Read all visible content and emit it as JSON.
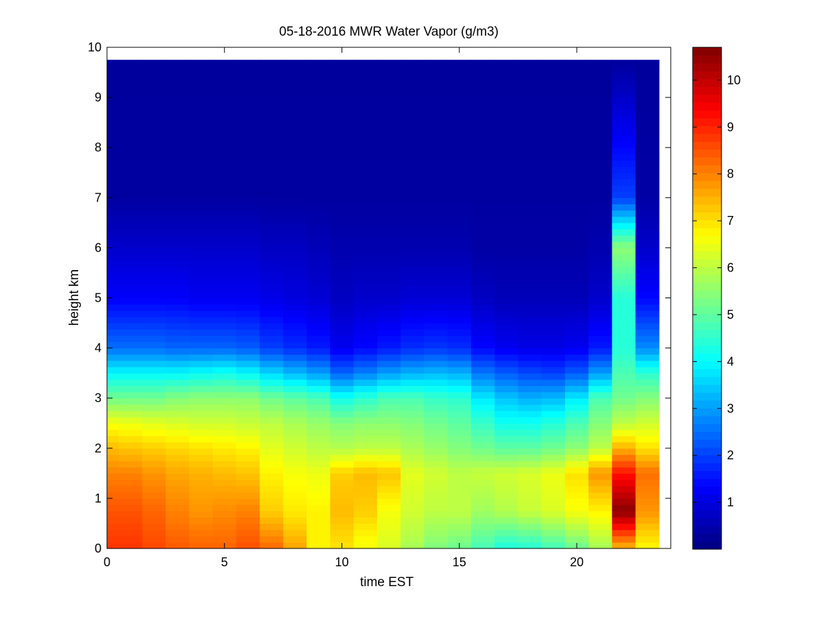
{
  "chart_data": {
    "type": "heatmap",
    "title": "05-18-2016 MWR Water Vapor (g/m3)",
    "xlabel": "time EST",
    "ylabel": "height km",
    "xlim": [
      0,
      24
    ],
    "ylim": [
      0,
      10
    ],
    "x_ticks": [
      "0",
      "5",
      "10",
      "15",
      "20"
    ],
    "y_ticks": [
      "0",
      "1",
      "2",
      "3",
      "4",
      "5",
      "6",
      "7",
      "8",
      "9",
      "10"
    ],
    "colorbar": {
      "colormap": "jet",
      "range": [
        0,
        10.7
      ],
      "ticks": [
        "1",
        "2",
        "3",
        "4",
        "5",
        "6",
        "7",
        "8",
        "9",
        "10"
      ]
    },
    "time_hours": [
      0,
      1,
      2,
      3,
      4,
      5,
      6,
      7,
      8,
      9,
      10,
      11,
      12,
      13,
      14,
      15,
      16,
      17,
      18,
      19,
      20,
      21,
      22,
      23
    ],
    "data_extent": {
      "x_max": 23.5,
      "y_max": 9.75
    },
    "profiles": {
      "height_km": [
        0.05,
        0.75,
        1.5,
        2.0,
        2.5,
        3.0,
        3.5,
        4.0,
        5.0,
        6.0,
        7.0,
        9.75
      ],
      "values": [
        [
          8.8,
          8.5,
          8.0,
          7.4,
          6.6,
          5.2,
          4.0,
          2.5,
          1.3,
          0.8,
          0.35,
          0.3
        ],
        [
          8.8,
          8.5,
          8.0,
          7.3,
          6.5,
          5.2,
          4.0,
          2.5,
          1.3,
          0.8,
          0.35,
          0.3
        ],
        [
          8.6,
          8.3,
          7.8,
          7.2,
          6.4,
          5.2,
          4.0,
          2.5,
          1.3,
          0.8,
          0.35,
          0.3
        ],
        [
          8.4,
          8.0,
          7.6,
          7.1,
          6.3,
          5.4,
          4.0,
          2.4,
          1.3,
          0.8,
          0.35,
          0.3
        ],
        [
          8.3,
          7.8,
          7.5,
          7.0,
          6.2,
          5.5,
          4.1,
          2.4,
          1.2,
          0.8,
          0.35,
          0.3
        ],
        [
          8.3,
          7.9,
          7.4,
          6.9,
          6.2,
          5.5,
          4.2,
          2.4,
          1.2,
          0.8,
          0.35,
          0.3
        ],
        [
          8.5,
          8.0,
          7.3,
          6.8,
          6.1,
          5.5,
          4.0,
          2.3,
          1.2,
          0.8,
          0.35,
          0.3
        ],
        [
          8.2,
          7.2,
          6.8,
          6.4,
          6.0,
          5.2,
          3.6,
          2.0,
          1.1,
          0.7,
          0.35,
          0.3
        ],
        [
          7.6,
          6.9,
          6.6,
          6.2,
          5.8,
          5.0,
          3.3,
          1.8,
          1.0,
          0.7,
          0.35,
          0.3
        ],
        [
          6.8,
          6.8,
          6.5,
          6.0,
          5.6,
          4.8,
          3.0,
          1.6,
          0.9,
          0.6,
          0.35,
          0.3
        ],
        [
          7.0,
          7.4,
          7.2,
          5.9,
          5.4,
          4.2,
          2.4,
          1.2,
          0.7,
          0.5,
          0.35,
          0.3
        ],
        [
          6.6,
          7.2,
          7.4,
          6.0,
          5.5,
          4.5,
          2.7,
          1.4,
          0.8,
          0.5,
          0.35,
          0.3
        ],
        [
          6.3,
          6.6,
          7.3,
          6.0,
          5.5,
          4.8,
          3.0,
          1.6,
          0.8,
          0.5,
          0.35,
          0.3
        ],
        [
          5.8,
          6.2,
          6.4,
          5.8,
          5.4,
          4.8,
          3.2,
          1.8,
          0.9,
          0.5,
          0.35,
          0.3
        ],
        [
          5.4,
          6.0,
          6.2,
          5.6,
          5.2,
          4.6,
          3.3,
          1.9,
          0.9,
          0.5,
          0.35,
          0.3
        ],
        [
          5.2,
          6.0,
          6.0,
          5.4,
          5.0,
          4.5,
          3.2,
          1.8,
          0.9,
          0.5,
          0.35,
          0.3
        ],
        [
          4.8,
          5.7,
          6.1,
          5.2,
          4.6,
          3.8,
          2.6,
          1.4,
          0.7,
          0.4,
          0.35,
          0.3
        ],
        [
          4.4,
          5.9,
          6.2,
          5.0,
          4.2,
          3.4,
          2.3,
          1.2,
          0.6,
          0.4,
          0.35,
          0.3
        ],
        [
          4.5,
          6.1,
          6.3,
          5.0,
          4.2,
          3.2,
          2.1,
          1.1,
          0.6,
          0.4,
          0.35,
          0.3
        ],
        [
          4.8,
          6.3,
          6.5,
          5.2,
          4.4,
          3.3,
          2.0,
          1.1,
          0.6,
          0.4,
          0.35,
          0.3
        ],
        [
          5.2,
          6.6,
          7.0,
          5.5,
          4.8,
          3.8,
          2.3,
          1.2,
          0.6,
          0.4,
          0.35,
          0.3
        ],
        [
          5.8,
          6.8,
          7.8,
          6.0,
          5.4,
          4.8,
          3.0,
          1.6,
          0.8,
          0.5,
          0.35,
          0.3
        ],
        [
          7.6,
          10.6,
          9.2,
          7.5,
          6.0,
          5.2,
          4.8,
          4.4,
          4.4,
          5.5,
          2.0,
          0.3
        ],
        [
          6.8,
          7.8,
          8.2,
          7.0,
          6.2,
          5.4,
          4.5,
          2.8,
          1.4,
          0.8,
          0.4,
          0.3
        ]
      ]
    }
  }
}
